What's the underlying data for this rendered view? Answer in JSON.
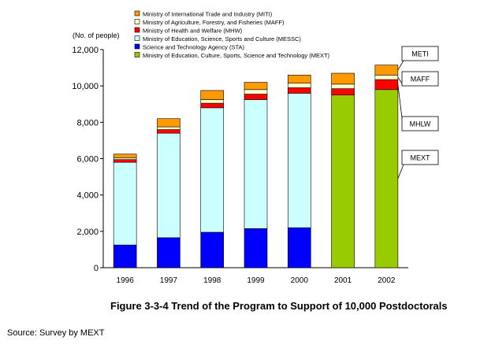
{
  "chart_data": {
    "type": "bar",
    "stacked": true,
    "ylabel": "(No. of people)",
    "ylim": [
      0,
      12000
    ],
    "yticks": [
      "0",
      "2,000",
      "4,000",
      "6,000",
      "8,000",
      "10,000",
      "12,000"
    ],
    "categories": [
      "1996",
      "1997",
      "1998",
      "1999",
      "2000",
      "2001",
      "2002"
    ],
    "series": [
      {
        "name": "Science and Technology Agency (STA)",
        "color": "#0000ff",
        "values": [
          1250,
          1650,
          1950,
          2150,
          2200,
          0,
          0
        ]
      },
      {
        "name": "Ministry of Education, Science, Sports and Culture (MESSC)",
        "color": "#ccffff",
        "values": [
          4550,
          5750,
          6850,
          7100,
          7400,
          0,
          0
        ]
      },
      {
        "name": "Ministry of Education, Culture, Sports, Science and Technology (MEXT)",
        "color": "#99cc00",
        "values": [
          0,
          0,
          0,
          0,
          0,
          9500,
          9800
        ]
      },
      {
        "name": "Ministry of Health and Welfare (MHW)",
        "color": "#ff0000",
        "values": [
          150,
          200,
          250,
          300,
          300,
          350,
          550
        ]
      },
      {
        "name": "Ministry of Agriculture, Forestry, and Fisheries (MAFF)",
        "color": "#ffffcc",
        "values": [
          100,
          150,
          200,
          250,
          250,
          250,
          250
        ]
      },
      {
        "name": "Ministry of International Trade and Industry (MITI)",
        "color": "#ff9900",
        "values": [
          200,
          450,
          500,
          400,
          450,
          600,
          550
        ]
      }
    ],
    "legend_order": [
      "Ministry of International Trade and Industry (MITI)",
      "Ministry of Agriculture, Forestry, and Fisheries (MAFF)",
      "Ministry of Health and Welfare (MHW)",
      "Ministry of Education, Science, Sports and Culture (MESSC)",
      "Science and Technology Agency (STA)",
      "Ministry of Education, Culture, Sports, Science and Technology (MEXT)"
    ],
    "legend_placement": "top",
    "callouts": [
      "METI",
      "MAFF",
      "MHLW",
      "MEXT"
    ],
    "grid": false
  },
  "caption": "Figure 3-3-4  Trend of the Program to Support of 10,000 Postdoctorals",
  "source": "Source: Survey by MEXT"
}
